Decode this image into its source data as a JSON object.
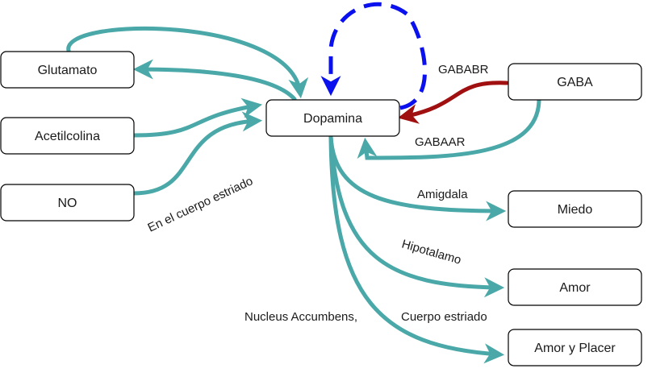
{
  "nodes": {
    "dopamina": "Dopamina",
    "glutamato": "Glutamato",
    "acetilcolina": "Acetilcolina",
    "no": "NO",
    "gaba": "GABA",
    "miedo": "Miedo",
    "amor": "Amor",
    "amor_placer": "Amor y Placer"
  },
  "edge_labels": {
    "gababr": "GABABR",
    "gabaar": "GABAAR",
    "cuerpo_estriado_no": "En el cuerpo estriado",
    "amigdala": "Amigdala",
    "hipotalamo": "Hipotalamo",
    "nucleus": "Nucleus Accumbens,",
    "cuerpo_estriado": "Cuerpo estriado"
  },
  "colors": {
    "teal": "#4aa8a8",
    "dark_red": "#a01010",
    "blue_dashed": "#0a10ee"
  }
}
